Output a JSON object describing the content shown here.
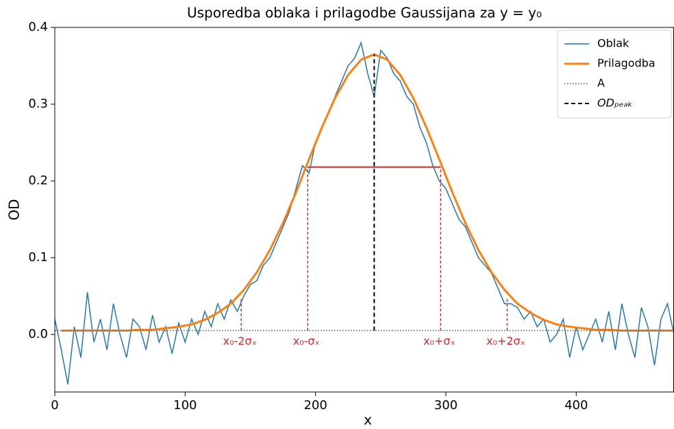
{
  "chart_data": {
    "type": "line",
    "title": "Usporedba oblaka i prilagodbe Gaussijana za y = y₀",
    "xlabel": "x",
    "ylabel": "OD",
    "xlim": [
      0,
      475
    ],
    "ylim": [
      -0.075,
      0.4
    ],
    "xticks": [
      0,
      100,
      200,
      300,
      400
    ],
    "yticks": [
      {
        "value": 0,
        "label": "0.0"
      },
      0.1,
      0.2,
      0.3,
      0.4
    ],
    "grid": false,
    "legend": "upper right",
    "series": [
      {
        "name": "Oblak",
        "color": "#1f77b4",
        "linestyle": "solid",
        "linewidth": 1.5,
        "x": [
          0,
          5,
          10,
          15,
          20,
          25,
          30,
          35,
          40,
          45,
          50,
          55,
          60,
          65,
          70,
          75,
          80,
          85,
          90,
          95,
          100,
          105,
          110,
          115,
          120,
          125,
          130,
          135,
          140,
          145,
          150,
          155,
          160,
          165,
          170,
          175,
          180,
          185,
          190,
          195,
          200,
          205,
          210,
          215,
          220,
          225,
          230,
          235,
          240,
          245,
          250,
          255,
          260,
          265,
          270,
          275,
          280,
          285,
          290,
          295,
          300,
          305,
          310,
          315,
          320,
          325,
          330,
          335,
          340,
          345,
          350,
          355,
          360,
          365,
          370,
          375,
          380,
          385,
          390,
          395,
          400,
          405,
          410,
          415,
          420,
          425,
          430,
          435,
          440,
          445,
          450,
          455,
          460,
          465,
          470,
          475
        ],
        "values": [
          0.02,
          -0.02,
          -0.065,
          0.01,
          -0.03,
          0.055,
          -0.01,
          0.02,
          -0.02,
          0.04,
          0.0,
          -0.03,
          0.02,
          0.01,
          -0.02,
          0.025,
          -0.01,
          0.01,
          -0.025,
          0.015,
          -0.01,
          0.02,
          0.0,
          0.03,
          0.01,
          0.04,
          0.02,
          0.045,
          0.03,
          0.05,
          0.065,
          0.07,
          0.09,
          0.1,
          0.12,
          0.14,
          0.16,
          0.19,
          0.22,
          0.21,
          0.25,
          0.27,
          0.29,
          0.31,
          0.33,
          0.35,
          0.36,
          0.38,
          0.34,
          0.31,
          0.37,
          0.36,
          0.34,
          0.33,
          0.31,
          0.3,
          0.27,
          0.25,
          0.22,
          0.2,
          0.19,
          0.17,
          0.15,
          0.14,
          0.12,
          0.1,
          0.09,
          0.08,
          0.06,
          0.04,
          0.04,
          0.035,
          0.02,
          0.03,
          0.01,
          0.02,
          -0.01,
          0.0,
          0.02,
          -0.03,
          0.01,
          -0.02,
          0.0,
          0.02,
          -0.01,
          0.03,
          -0.02,
          0.04,
          0.0,
          -0.03,
          0.035,
          0.01,
          -0.04,
          0.02,
          0.04,
          0.0
        ]
      },
      {
        "name": "Prilagodba",
        "color": "#ff7f0e",
        "linestyle": "solid",
        "linewidth": 3,
        "x": [
          5,
          15,
          25,
          35,
          45,
          55,
          65,
          75,
          85,
          95,
          105,
          115,
          125,
          135,
          145,
          155,
          165,
          175,
          185,
          195,
          205,
          215,
          225,
          235,
          245,
          255,
          265,
          275,
          285,
          295,
          305,
          315,
          325,
          335,
          345,
          355,
          365,
          375,
          385,
          395,
          405,
          415,
          425,
          435,
          445,
          455,
          465,
          475
        ],
        "values": [
          0.005,
          0.005,
          0.005,
          0.005,
          0.005,
          0.005,
          0.006,
          0.006,
          0.008,
          0.01,
          0.013,
          0.019,
          0.028,
          0.04,
          0.058,
          0.081,
          0.11,
          0.145,
          0.185,
          0.228,
          0.27,
          0.308,
          0.338,
          0.358,
          0.365,
          0.358,
          0.338,
          0.308,
          0.27,
          0.228,
          0.185,
          0.145,
          0.11,
          0.081,
          0.058,
          0.04,
          0.028,
          0.019,
          0.013,
          0.01,
          0.008,
          0.006,
          0.006,
          0.005,
          0.005,
          0.005,
          0.005,
          0.005
        ]
      },
      {
        "name": "A",
        "color": "#555555",
        "linestyle": "dotted",
        "linewidth": 1.5,
        "x": [
          0,
          475
        ],
        "values": [
          0.005,
          0.005
        ]
      },
      {
        "name": "ODₚₑₐₖ",
        "color": "#000000",
        "linestyle": "dashed",
        "linewidth": 2,
        "x": [
          245,
          245
        ],
        "values": [
          0.005,
          0.365
        ]
      }
    ],
    "segments": [
      {
        "color": "#d62728",
        "x": [
          194,
          296
        ],
        "values": [
          0.218,
          0.218
        ]
      }
    ],
    "annotations": [
      {
        "label": "x₀-2σₓ",
        "x": 143,
        "y": 0.047,
        "color": "#d62728"
      },
      {
        "label": "x₀-σₓ",
        "x": 194,
        "y": 0.218,
        "color": "#d62728"
      },
      {
        "label": "x₀+σₓ",
        "x": 296,
        "y": 0.218,
        "color": "#d62728"
      },
      {
        "label": "x₀+2σₓ",
        "x": 347,
        "y": 0.047,
        "color": "#d62728"
      }
    ]
  }
}
